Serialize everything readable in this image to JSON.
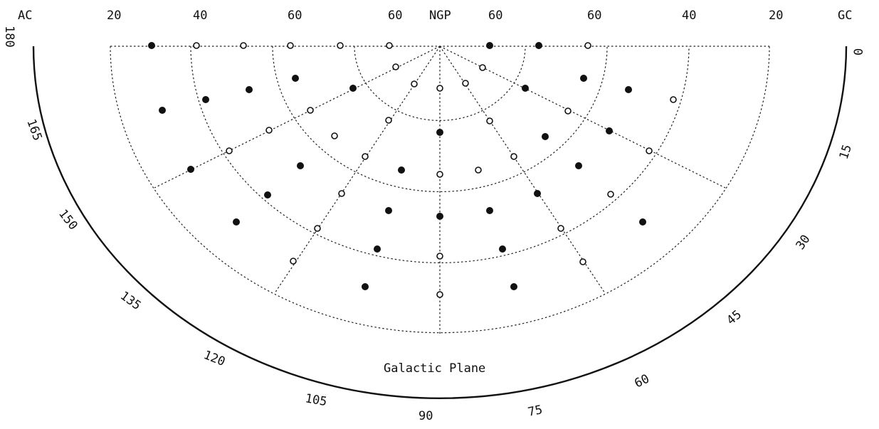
{
  "top_labels": {
    "left_end": "AC",
    "center": "NGP",
    "right_end": "GC",
    "left_lat": [
      "20",
      "40",
      "60",
      "60"
    ],
    "right_lat": [
      "60",
      "60",
      "40",
      "20"
    ]
  },
  "longitude_ticks": [
    "180",
    "165",
    "150",
    "135",
    "120",
    "105",
    "90",
    "75",
    "60",
    "45",
    "30",
    "15",
    "0"
  ],
  "caption": "Galactic Plane",
  "colors": {
    "ink": "#111111",
    "background": "#ffffff"
  }
}
